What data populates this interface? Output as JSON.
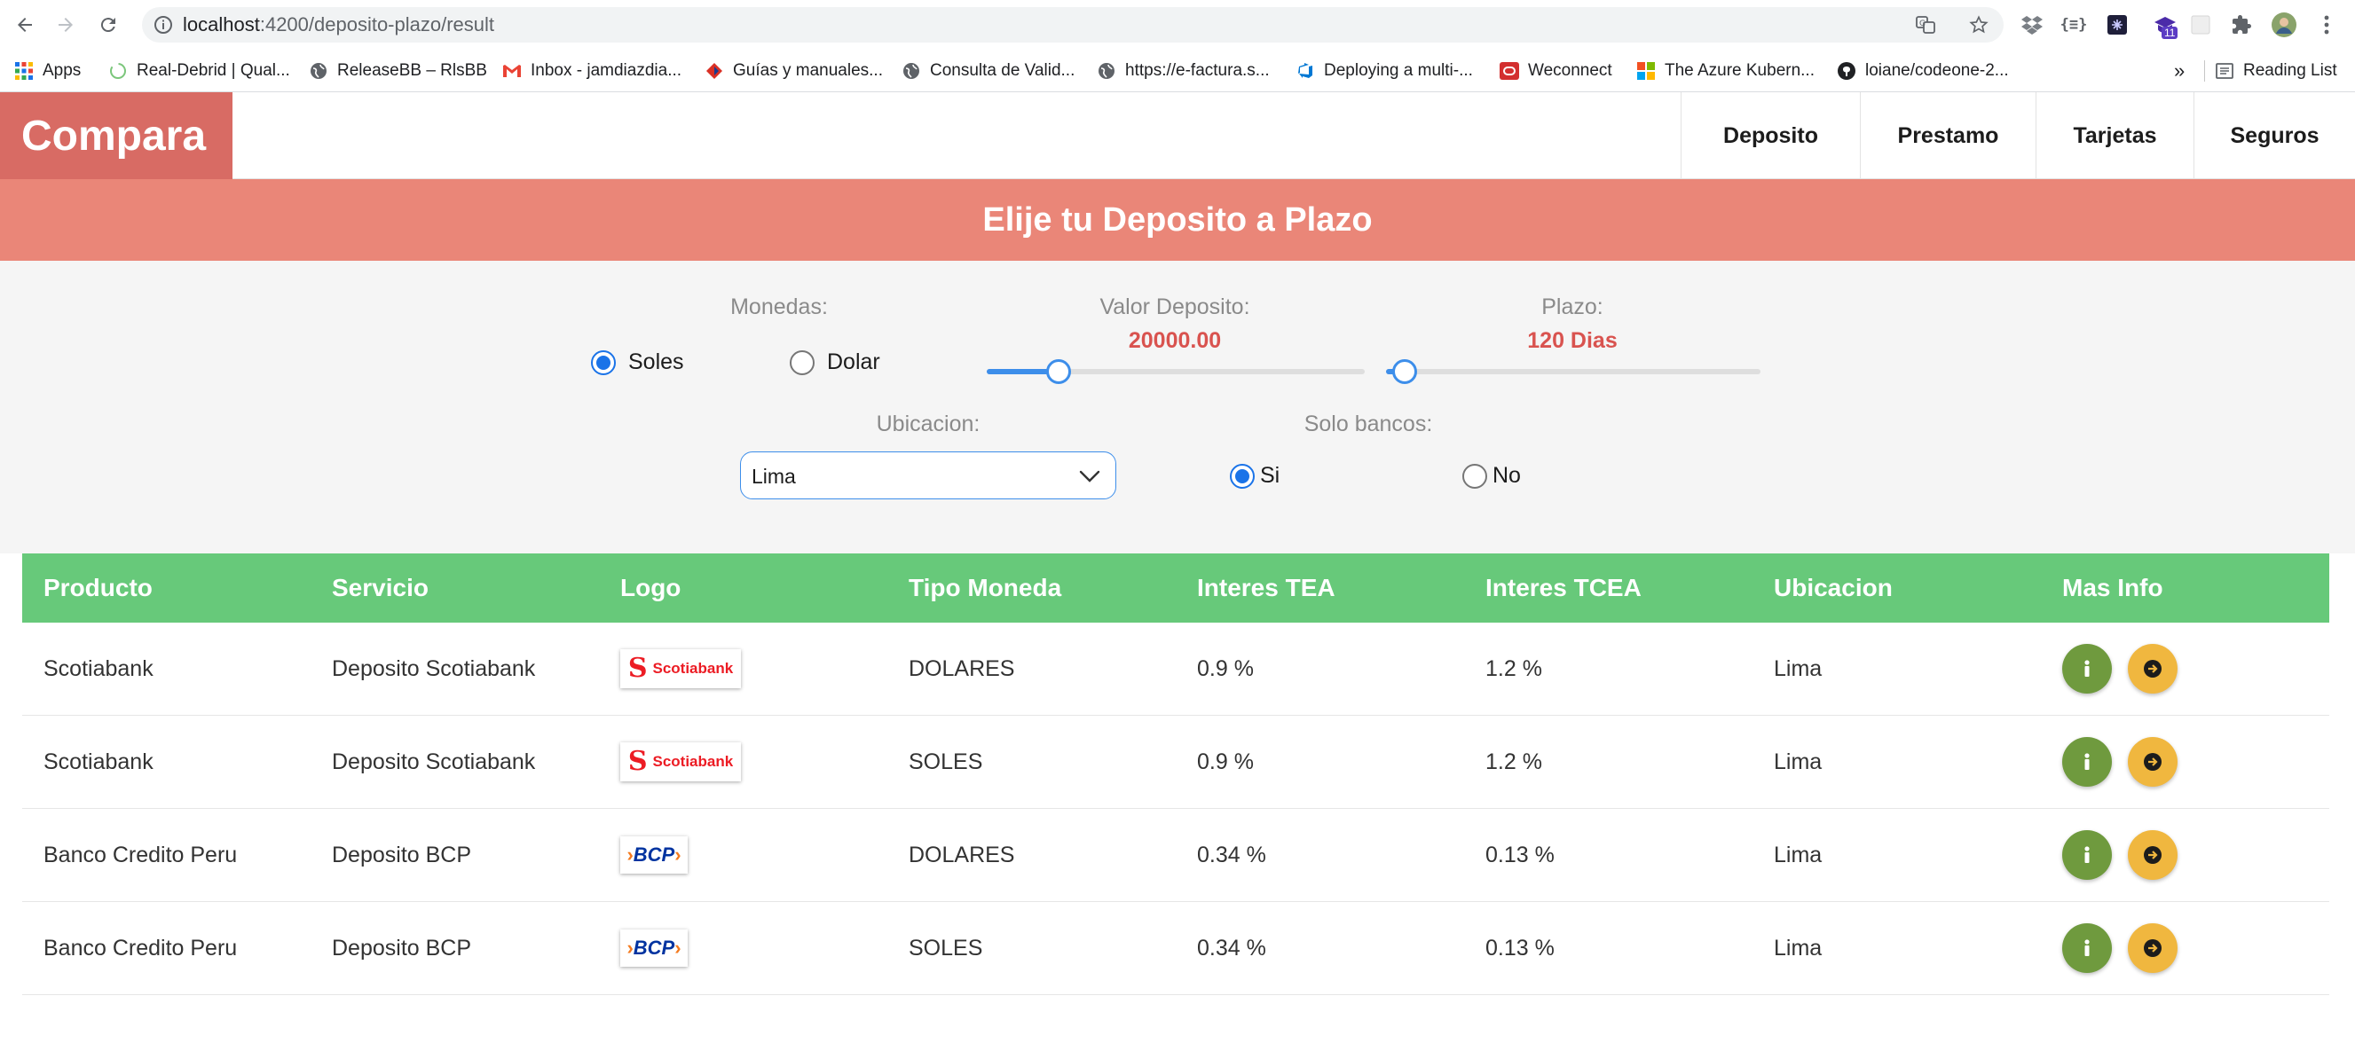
{
  "browser": {
    "url_host": "localhost",
    "url_path": ":4200/deposito-plazo/result",
    "extension_badge": "11",
    "bookmarks": [
      {
        "label": "Apps",
        "icon": "apps-grid-icon"
      },
      {
        "label": "Real-Debrid | Qual...",
        "icon": "real-debrid-icon"
      },
      {
        "label": "ReleaseBB – RlsBB",
        "icon": "globe-icon"
      },
      {
        "label": "Inbox - jamdiazdia...",
        "icon": "gmail-icon"
      },
      {
        "label": "Guías y manuales...",
        "icon": "diamond-icon"
      },
      {
        "label": "Consulta de Valid...",
        "icon": "globe-icon"
      },
      {
        "label": "https://e-factura.s...",
        "icon": "globe-icon"
      },
      {
        "label": "Deploying a multi-...",
        "icon": "azure-devops-icon"
      },
      {
        "label": "Weconnect",
        "icon": "oracle-icon"
      },
      {
        "label": "The Azure Kubern...",
        "icon": "microsoft-icon"
      },
      {
        "label": "loiane/codeone-2...",
        "icon": "github-icon"
      }
    ],
    "bookmarks_overflow": "»",
    "reading_list": "Reading List"
  },
  "app": {
    "brand": "Compara",
    "nav": [
      "Deposito",
      "Prestamo",
      "Tarjetas",
      "Seguros"
    ],
    "banner_title": "Elije tu Deposito a Plazo"
  },
  "filters": {
    "monedas_label": "Monedas:",
    "monedas_options": [
      "Soles",
      "Dolar"
    ],
    "monedas_selected": "Soles",
    "deposito_label": "Valor Deposito:",
    "deposito_value": "20000.00",
    "deposito_slider_fraction": 0.19,
    "plazo_label": "Plazo:",
    "plazo_value": "120 Dias",
    "plazo_slider_fraction": 0.05,
    "ubicacion_label": "Ubicacion:",
    "ubicacion_value": "Lima",
    "solo_bancos_label": "Solo bancos:",
    "solo_bancos_options": [
      "Si",
      "No"
    ],
    "solo_bancos_selected": "Si"
  },
  "table": {
    "headers": [
      "Producto",
      "Servicio",
      "Logo",
      "Tipo Moneda",
      "Interes TEA",
      "Interes TCEA",
      "Ubicacion",
      "Mas Info"
    ],
    "rows": [
      {
        "producto": "Scotiabank",
        "servicio": "Deposito Scotiabank",
        "logo": "Scotiabank",
        "moneda": "DOLARES",
        "tea": "0.9 %",
        "tcea": "1.2 %",
        "ubicacion": "Lima"
      },
      {
        "producto": "Scotiabank",
        "servicio": "Deposito Scotiabank",
        "logo": "Scotiabank",
        "moneda": "SOLES",
        "tea": "0.9 %",
        "tcea": "1.2 %",
        "ubicacion": "Lima"
      },
      {
        "producto": "Banco Credito Peru",
        "servicio": "Deposito BCP",
        "logo": "BCP",
        "moneda": "DOLARES",
        "tea": "0.34 %",
        "tcea": "0.13 %",
        "ubicacion": "Lima"
      },
      {
        "producto": "Banco Credito Peru",
        "servicio": "Deposito BCP",
        "logo": "BCP",
        "moneda": "SOLES",
        "tea": "0.34 %",
        "tcea": "0.13 %",
        "ubicacion": "Lima"
      }
    ]
  },
  "colors": {
    "brand": "#d86b64",
    "banner": "#ea8678",
    "table_header": "#67c97a",
    "accent_blue": "#3d8eea",
    "value_red": "#d9534f",
    "info_button": "#6f9a3e",
    "go_button": "#f0b73f"
  }
}
